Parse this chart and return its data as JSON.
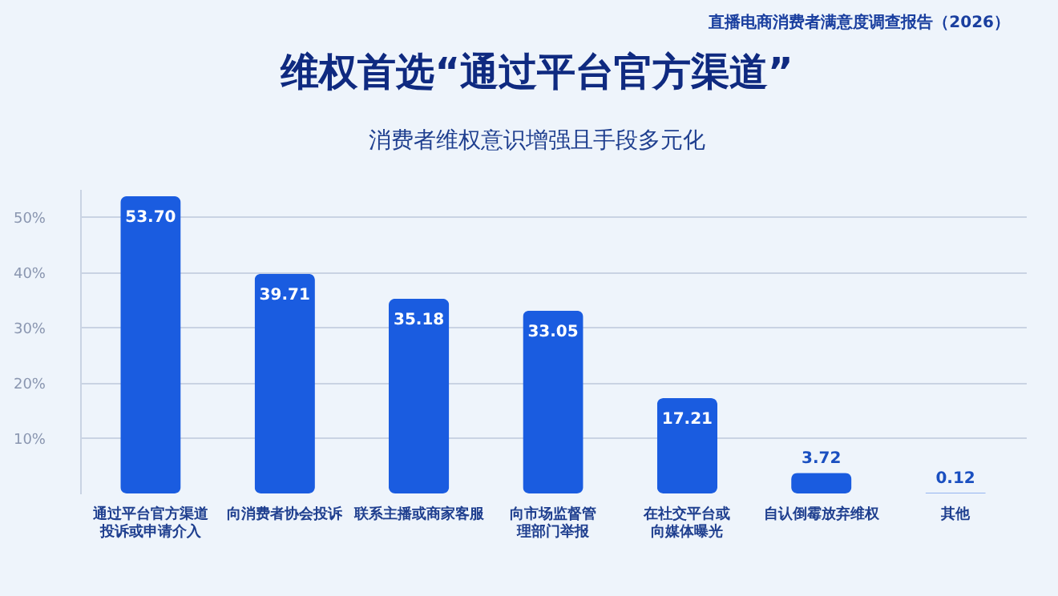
{
  "chart_data": {
    "type": "bar",
    "title": "维权首选“通过平台官方渠道”",
    "subtitle": "消费者维权意识增强且手段多元化",
    "annotations": [
      "直播电商消费者满意度调查报告（2026）"
    ],
    "categories": [
      "通过平台官方渠道投诉或申请介入",
      "向消费者协会投诉",
      "联系主播或商家客服",
      "向市场监督管理部门举报",
      "在社交平台或向媒体曝光",
      "自认倒霉放弃维权",
      "其他"
    ],
    "values": [
      53.7,
      39.71,
      35.18,
      33.05,
      17.21,
      3.72,
      0.12
    ],
    "value_labels": [
      "53.70",
      "39.71",
      "35.18",
      "33.05",
      "17.21",
      "3.72",
      "0.12"
    ],
    "color": "#1a5ce0",
    "ylim": [
      0,
      55
    ],
    "yticks": [
      {
        "value": 10,
        "label": "10%"
      },
      {
        "value": 20,
        "label": "20%"
      },
      {
        "value": 30,
        "label": "30%"
      },
      {
        "value": 40,
        "label": "40%"
      },
      {
        "value": 50,
        "label": "50%"
      }
    ],
    "grid": "y"
  }
}
